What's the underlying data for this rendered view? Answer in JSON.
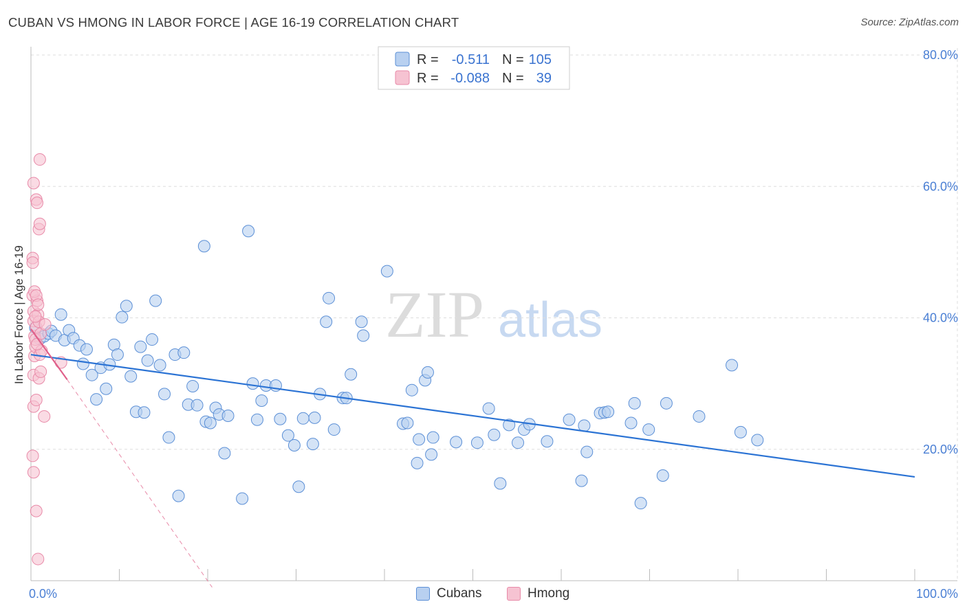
{
  "header": {
    "title": "CUBAN VS HMONG IN LABOR FORCE | AGE 16-19 CORRELATION CHART",
    "source": "Source: ZipAtlas.com"
  },
  "watermark": {
    "zip": "ZIP",
    "atlas": "atlas"
  },
  "legend": {
    "rows": [
      {
        "r_label": "R =",
        "r_value": "-0.511",
        "n_label": "N =",
        "n_value": "105"
      },
      {
        "r_label": "R =",
        "r_value": "-0.088",
        "n_label": "N =",
        "n_value": "39"
      }
    ]
  },
  "bottom_legend": {
    "cubans": "Cubans",
    "hmong": "Hmong"
  },
  "colors": {
    "cubans_fill": "#b8d0f0",
    "cubans_stroke": "#5b8fd6",
    "cubans_line": "#2b73d4",
    "hmong_fill": "#f6c3d2",
    "hmong_stroke": "#e88aa8",
    "hmong_line": "#e0608a",
    "tick_text": "#4a7fd4"
  },
  "chart_data": {
    "type": "scatter",
    "xlabel": "",
    "ylabel": "In Labor Force | Age 16-19",
    "xlim": [
      0,
      100
    ],
    "ylim": [
      0,
      80
    ],
    "x_tick_labels": [
      {
        "value": 0,
        "label": "0.0%"
      },
      {
        "value": 100,
        "label": "100.0%"
      }
    ],
    "y_tick_labels": [
      {
        "value": 20,
        "label": "20.0%"
      },
      {
        "value": 40,
        "label": "40.0%"
      },
      {
        "value": 60,
        "label": "60.0%"
      },
      {
        "value": 80,
        "label": "80.0%"
      }
    ],
    "grid": true,
    "legend_position": "top-center",
    "series": [
      {
        "name": "Cubans",
        "r": -0.511,
        "n": 105,
        "trend": {
          "x": [
            0,
            100
          ],
          "y": [
            34.4,
            15.8
          ]
        },
        "points": [
          [
            0.5,
            38.5
          ],
          [
            1.0,
            36.8
          ],
          [
            1.5,
            37.2
          ],
          [
            2.0,
            37.6
          ],
          [
            2.3,
            38.0
          ],
          [
            2.8,
            37.3
          ],
          [
            3.4,
            40.5
          ],
          [
            3.8,
            36.6
          ],
          [
            4.3,
            38.1
          ],
          [
            4.8,
            36.9
          ],
          [
            5.5,
            35.8
          ],
          [
            5.9,
            33.0
          ],
          [
            6.3,
            35.2
          ],
          [
            6.9,
            31.3
          ],
          [
            7.4,
            27.6
          ],
          [
            7.9,
            32.4
          ],
          [
            8.5,
            29.2
          ],
          [
            8.9,
            32.9
          ],
          [
            9.4,
            35.9
          ],
          [
            9.8,
            34.4
          ],
          [
            10.3,
            40.1
          ],
          [
            10.8,
            41.8
          ],
          [
            11.3,
            31.1
          ],
          [
            11.9,
            25.7
          ],
          [
            12.4,
            35.6
          ],
          [
            12.8,
            25.6
          ],
          [
            13.2,
            33.5
          ],
          [
            13.7,
            36.7
          ],
          [
            14.1,
            42.6
          ],
          [
            14.6,
            32.8
          ],
          [
            15.1,
            28.4
          ],
          [
            15.6,
            21.8
          ],
          [
            16.3,
            34.4
          ],
          [
            16.7,
            12.9
          ],
          [
            17.3,
            34.7
          ],
          [
            17.8,
            26.8
          ],
          [
            18.3,
            29.6
          ],
          [
            18.8,
            26.7
          ],
          [
            19.6,
            50.9
          ],
          [
            19.8,
            24.2
          ],
          [
            20.3,
            24.0
          ],
          [
            20.9,
            26.3
          ],
          [
            21.3,
            25.3
          ],
          [
            21.9,
            19.4
          ],
          [
            22.3,
            25.1
          ],
          [
            23.9,
            12.5
          ],
          [
            24.6,
            53.2
          ],
          [
            25.1,
            30.0
          ],
          [
            25.6,
            24.5
          ],
          [
            26.1,
            27.4
          ],
          [
            26.6,
            29.7
          ],
          [
            27.7,
            29.7
          ],
          [
            28.2,
            24.6
          ],
          [
            29.1,
            22.1
          ],
          [
            29.8,
            20.6
          ],
          [
            30.3,
            14.3
          ],
          [
            30.8,
            24.7
          ],
          [
            31.9,
            20.8
          ],
          [
            32.1,
            24.8
          ],
          [
            32.7,
            28.4
          ],
          [
            33.4,
            39.4
          ],
          [
            33.7,
            43.0
          ],
          [
            34.3,
            23.0
          ],
          [
            35.3,
            27.8
          ],
          [
            35.7,
            27.8
          ],
          [
            36.2,
            31.4
          ],
          [
            37.4,
            39.4
          ],
          [
            37.6,
            37.3
          ],
          [
            40.3,
            47.1
          ],
          [
            42.1,
            23.9
          ],
          [
            42.6,
            24.0
          ],
          [
            43.1,
            29.0
          ],
          [
            43.7,
            17.9
          ],
          [
            43.9,
            21.5
          ],
          [
            44.6,
            30.5
          ],
          [
            44.9,
            31.7
          ],
          [
            45.3,
            19.2
          ],
          [
            45.5,
            21.8
          ],
          [
            48.1,
            21.1
          ],
          [
            50.5,
            21.0
          ],
          [
            51.8,
            26.2
          ],
          [
            52.4,
            22.2
          ],
          [
            53.1,
            14.8
          ],
          [
            54.1,
            23.7
          ],
          [
            55.1,
            21.0
          ],
          [
            55.8,
            23.0
          ],
          [
            56.4,
            23.8
          ],
          [
            58.4,
            21.2
          ],
          [
            60.9,
            24.5
          ],
          [
            62.3,
            15.2
          ],
          [
            62.6,
            23.6
          ],
          [
            62.9,
            19.6
          ],
          [
            64.4,
            25.5
          ],
          [
            64.9,
            25.6
          ],
          [
            65.3,
            25.7
          ],
          [
            67.9,
            24.0
          ],
          [
            68.3,
            27.0
          ],
          [
            69.0,
            11.8
          ],
          [
            69.9,
            23.0
          ],
          [
            71.5,
            16.0
          ],
          [
            71.9,
            27.0
          ],
          [
            75.6,
            25.0
          ],
          [
            79.3,
            32.8
          ],
          [
            80.3,
            22.6
          ],
          [
            82.2,
            21.4
          ]
        ]
      },
      {
        "name": "Hmong",
        "r": -0.088,
        "n": 39,
        "trend": {
          "x": [
            0,
            4.1
          ],
          "y": [
            38.3,
            30.6
          ]
        },
        "trend_extension": {
          "x": [
            4.1,
            20.5
          ],
          "y": [
            30.6,
            -1.0
          ]
        },
        "points": [
          [
            0.2,
            43.4
          ],
          [
            0.3,
            41.0
          ],
          [
            0.3,
            39.5
          ],
          [
            0.4,
            37.2
          ],
          [
            0.4,
            34.2
          ],
          [
            0.5,
            35.6
          ],
          [
            0.5,
            36.7
          ],
          [
            0.6,
            38.6
          ],
          [
            0.7,
            42.6
          ],
          [
            0.8,
            40.5
          ],
          [
            0.9,
            39.4
          ],
          [
            1.0,
            34.4
          ],
          [
            1.1,
            37.6
          ],
          [
            0.3,
            60.5
          ],
          [
            0.6,
            58.0
          ],
          [
            0.7,
            57.5
          ],
          [
            0.9,
            53.5
          ],
          [
            1.0,
            54.3
          ],
          [
            1.0,
            64.1
          ],
          [
            0.2,
            49.1
          ],
          [
            0.2,
            48.4
          ],
          [
            0.4,
            44.0
          ],
          [
            0.6,
            43.4
          ],
          [
            0.8,
            42.0
          ],
          [
            0.3,
            31.3
          ],
          [
            0.9,
            30.8
          ],
          [
            1.1,
            31.8
          ],
          [
            0.3,
            26.5
          ],
          [
            0.6,
            27.5
          ],
          [
            1.5,
            25.0
          ],
          [
            0.2,
            19.0
          ],
          [
            0.3,
            16.5
          ],
          [
            0.6,
            10.6
          ],
          [
            0.8,
            3.3
          ],
          [
            1.6,
            39.0
          ],
          [
            3.4,
            33.2
          ],
          [
            0.5,
            40.2
          ],
          [
            1.2,
            35.0
          ],
          [
            0.7,
            36.0
          ]
        ]
      }
    ]
  }
}
